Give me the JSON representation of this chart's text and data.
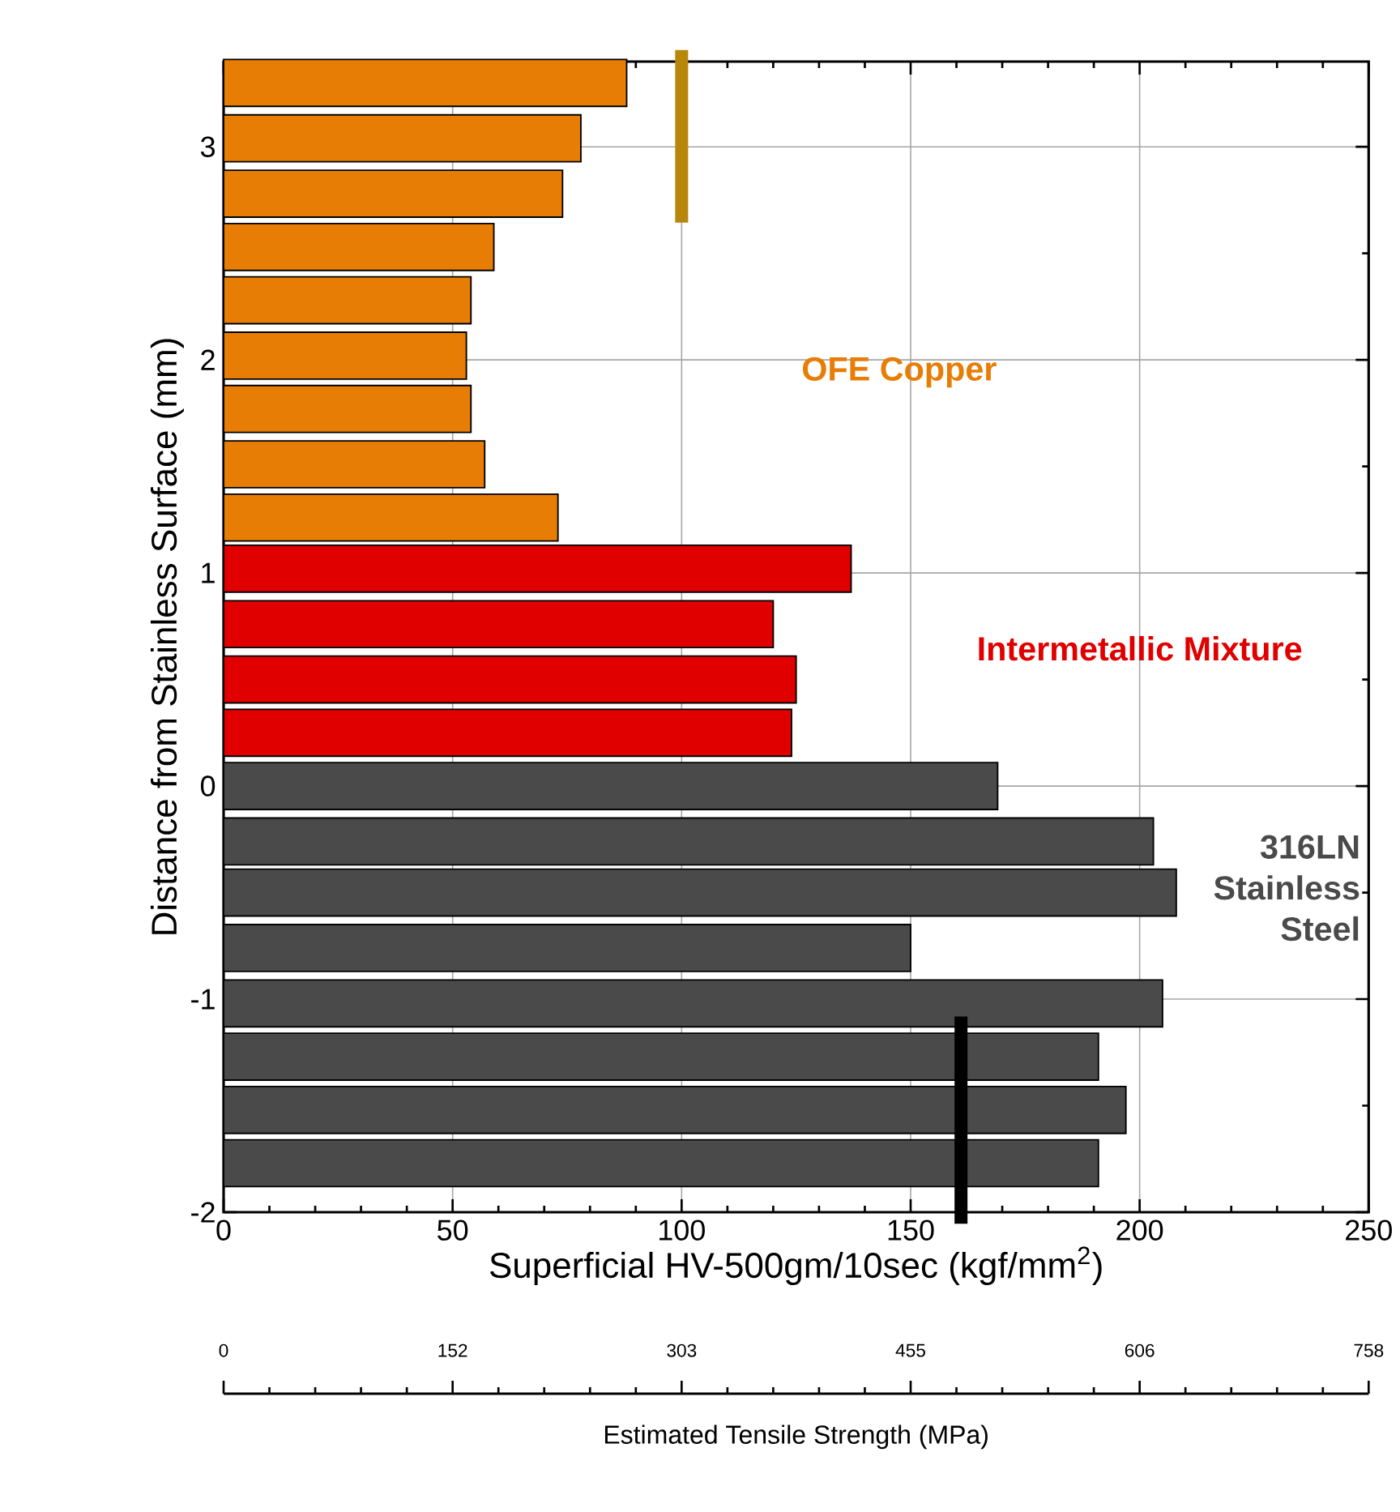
{
  "chart_data": {
    "type": "bar",
    "orientation": "horizontal",
    "xlabel": "Superficial HV-500gm/10sec (kgf/mm$^{2}$)",
    "ylabel": "Distance from Stainless Surface (mm)",
    "annotations": [
      "0",
      "152",
      "303",
      "455",
      "606",
      "758",
      "Estimated Tensile Strength (MPa)"
    ],
    "xlim": [
      0,
      250
    ],
    "xticks": [
      0,
      50,
      100,
      150,
      200,
      250
    ],
    "ylim": [
      -2,
      3.4
    ],
    "yticks": [
      -2,
      -1,
      0,
      1,
      2,
      3
    ],
    "grid": true,
    "series": [
      {
        "name": "OFE Copper",
        "color": "#e87d05",
        "x": [
          3.3,
          3.04,
          2.78,
          2.53,
          2.28,
          2.02,
          1.77,
          1.51,
          1.26
        ],
        "values": [
          88,
          78,
          74,
          59,
          54,
          53,
          54,
          57,
          73
        ]
      },
      {
        "name": "Intermetallic Mixture",
        "color": "#e00000",
        "x": [
          1.02,
          0.76,
          0.5,
          0.25
        ],
        "values": [
          137,
          120,
          125,
          124
        ]
      },
      {
        "name": "316LN Stainless Steel",
        "color": "#4a4a4a",
        "x": [
          0,
          -0.26,
          -0.5,
          -0.76,
          -1.02,
          -1.27,
          -1.52,
          -1.77
        ],
        "values": [
          169,
          203,
          208,
          150,
          205,
          191,
          197,
          191
        ]
      }
    ],
    "ref_lines": [
      {
        "axis": "x",
        "value": 100,
        "color": "#b8860b"
      },
      {
        "axis": "x",
        "value": 161,
        "color": "#000000"
      }
    ]
  }
}
